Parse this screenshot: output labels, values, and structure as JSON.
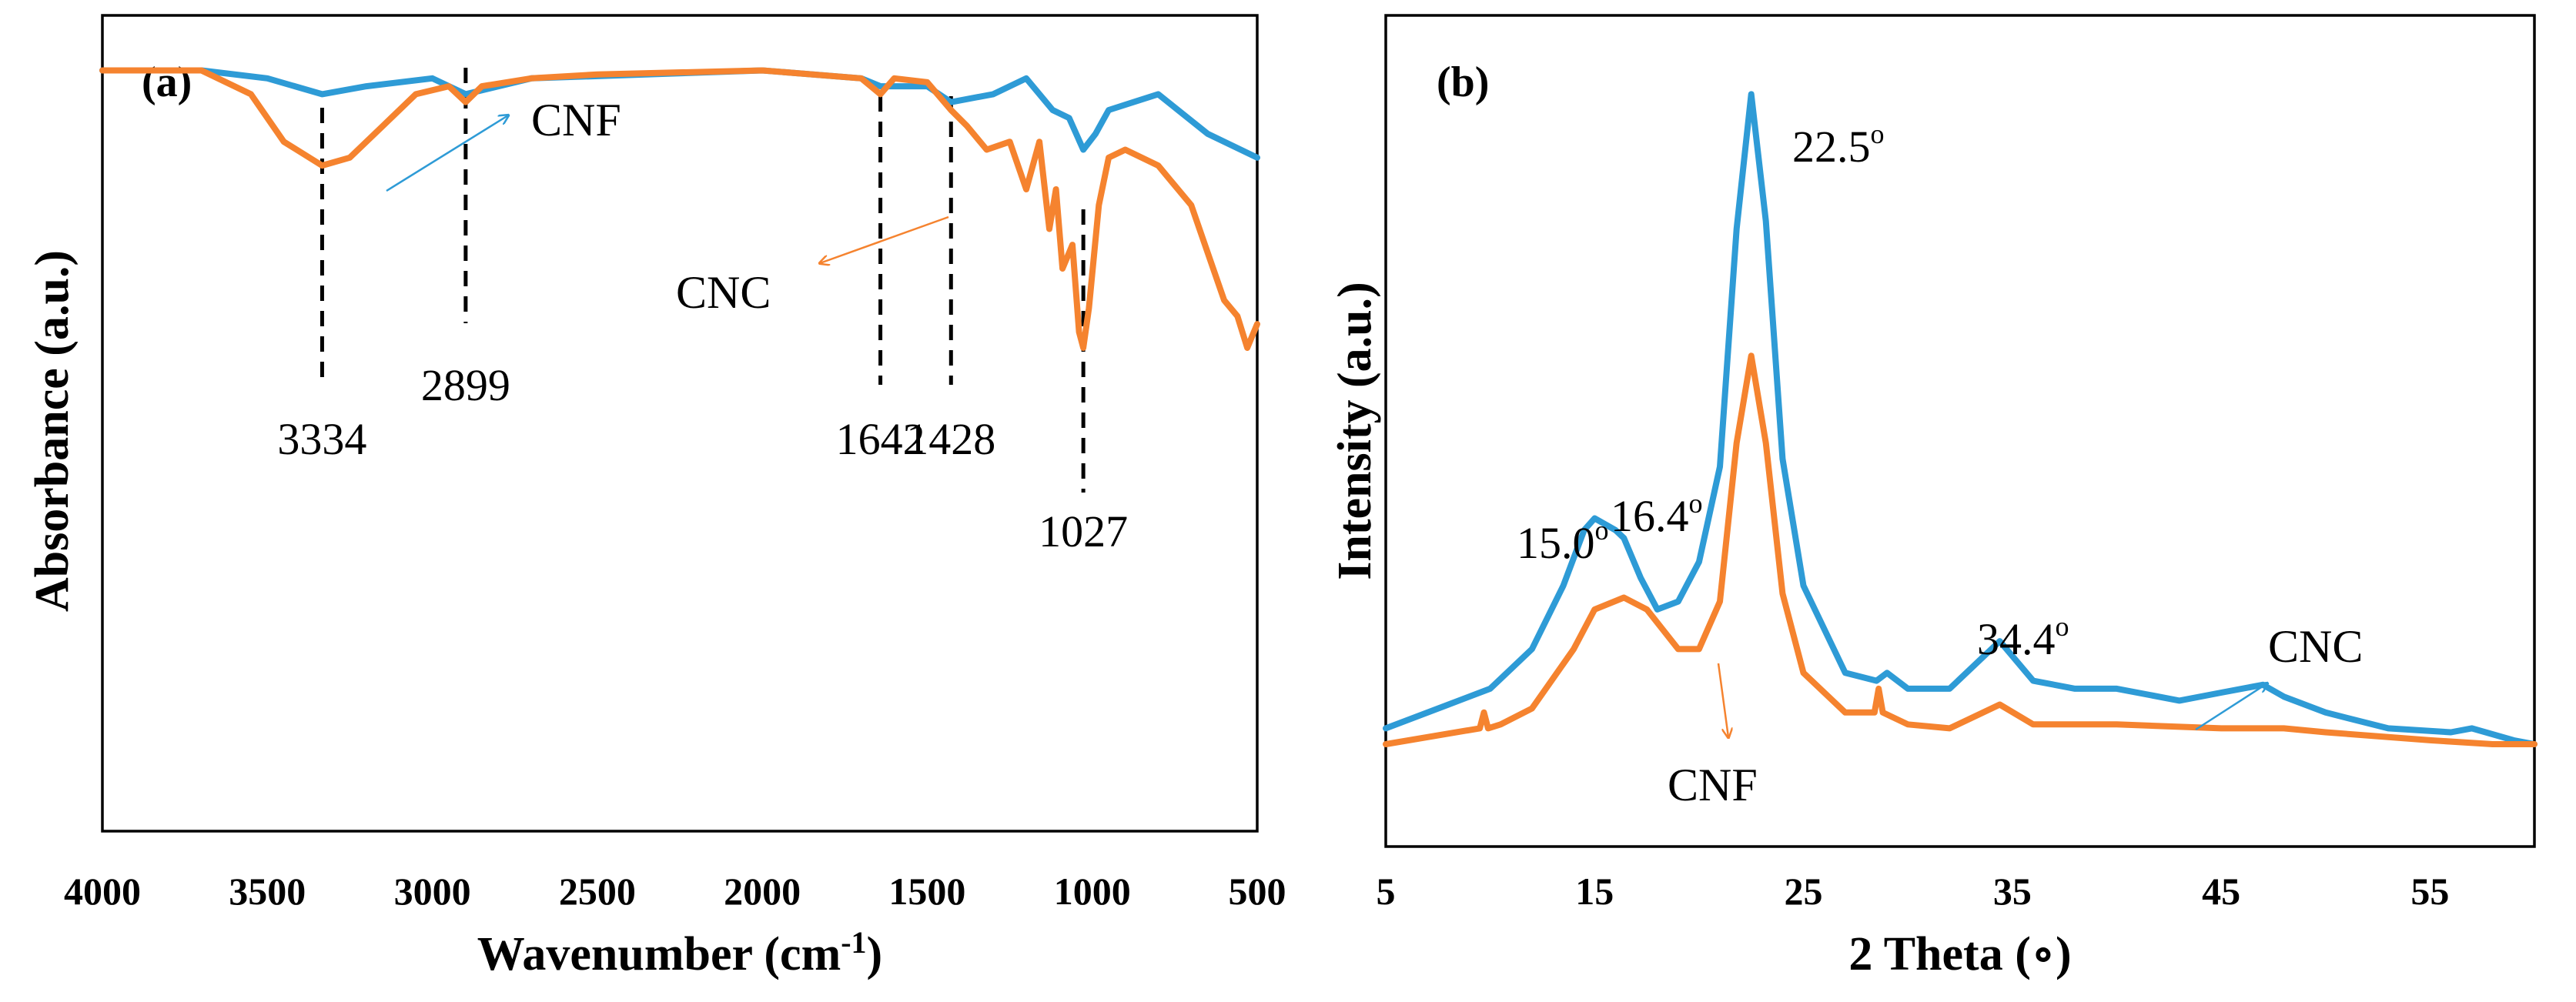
{
  "colors": {
    "blue": "#2e9bd6",
    "orange": "#f5832f",
    "axis": "#000000"
  },
  "chart_data": [
    {
      "panel_label": "(a)",
      "type": "line",
      "xlabel": "Wavenumber (cm",
      "xlabel_sup": "-1",
      "xlabel_end": ")",
      "ylabel": "Absorbance (a.u.)",
      "xlim": [
        4000,
        500
      ],
      "ylim": [
        0,
        1
      ],
      "xticks": [
        "4000",
        "3500",
        "3000",
        "2500",
        "2000",
        "1500",
        "1000",
        "500"
      ],
      "grid": false,
      "series": [
        {
          "name": "CNF",
          "color": "#2e9bd6",
          "x": [
            4000,
            3700,
            3500,
            3334,
            3200,
            3000,
            2899,
            2700,
            2000,
            1700,
            1642,
            1500,
            1428,
            1300,
            1200,
            1120,
            1070,
            1027,
            990,
            950,
            800,
            650,
            500
          ],
          "y": [
            0.95,
            0.95,
            0.94,
            0.92,
            0.93,
            0.94,
            0.92,
            0.94,
            0.95,
            0.94,
            0.93,
            0.93,
            0.91,
            0.92,
            0.94,
            0.9,
            0.89,
            0.85,
            0.87,
            0.9,
            0.92,
            0.87,
            0.84
          ]
        },
        {
          "name": "CNC",
          "color": "#f5832f",
          "x": [
            4000,
            3700,
            3550,
            3450,
            3334,
            3250,
            3150,
            3050,
            2950,
            2899,
            2850,
            2700,
            2500,
            2000,
            1700,
            1642,
            1600,
            1500,
            1428,
            1380,
            1320,
            1250,
            1200,
            1160,
            1130,
            1110,
            1090,
            1060,
            1040,
            1027,
            1010,
            980,
            950,
            900,
            800,
            700,
            650,
            600,
            560,
            530,
            500
          ],
          "y": [
            0.95,
            0.95,
            0.92,
            0.86,
            0.83,
            0.84,
            0.88,
            0.92,
            0.93,
            0.91,
            0.93,
            0.94,
            0.945,
            0.95,
            0.94,
            0.92,
            0.94,
            0.935,
            0.9,
            0.88,
            0.85,
            0.86,
            0.8,
            0.86,
            0.75,
            0.8,
            0.7,
            0.73,
            0.62,
            0.6,
            0.65,
            0.78,
            0.84,
            0.85,
            0.83,
            0.78,
            0.72,
            0.66,
            0.64,
            0.6,
            0.63
          ]
        }
      ],
      "peak_lines": [
        {
          "x": 3334,
          "label": "3334"
        },
        {
          "x": 2899,
          "label": "2899"
        },
        {
          "x": 1642,
          "label": "1642"
        },
        {
          "x": 1428,
          "label": "1428"
        },
        {
          "x": 1027,
          "label": "1027"
        }
      ],
      "annotations": [
        "CNF",
        "CNC"
      ]
    },
    {
      "panel_label": "(b)",
      "type": "line",
      "xlabel": "2 Theta (∘)",
      "ylabel": "Intensity (a.u.)",
      "xlim": [
        5,
        60
      ],
      "ylim": [
        0,
        1
      ],
      "xticks": [
        "5",
        "15",
        "25",
        "35",
        "45",
        "55"
      ],
      "grid": false,
      "series": [
        {
          "name": "CNC",
          "color": "#2e9bd6",
          "x": [
            5,
            8,
            10,
            12,
            13.5,
            14.5,
            15,
            16,
            16.4,
            17.2,
            18,
            19,
            20,
            21,
            21.8,
            22.5,
            23.2,
            24,
            25,
            27,
            28.5,
            29,
            30,
            32,
            34.4,
            36,
            38,
            40,
            43,
            45,
            47,
            48,
            50,
            53,
            56,
            57,
            59,
            60
          ],
          "y": [
            0.12,
            0.15,
            0.17,
            0.22,
            0.3,
            0.37,
            0.385,
            0.37,
            0.36,
            0.31,
            0.27,
            0.28,
            0.33,
            0.45,
            0.75,
            0.92,
            0.76,
            0.46,
            0.3,
            0.19,
            0.18,
            0.19,
            0.17,
            0.17,
            0.23,
            0.18,
            0.17,
            0.17,
            0.155,
            0.165,
            0.175,
            0.16,
            0.14,
            0.12,
            0.115,
            0.12,
            0.105,
            0.1
          ]
        },
        {
          "name": "CNF",
          "color": "#f5832f",
          "x": [
            5,
            9.5,
            9.7,
            9.9,
            10.5,
            12,
            14,
            15,
            16.4,
            17.5,
            19,
            20,
            21,
            21.8,
            22.5,
            23.2,
            24,
            25,
            27,
            28.4,
            28.6,
            28.8,
            30,
            32,
            34.4,
            36,
            40,
            45,
            48,
            50,
            55,
            58,
            60
          ],
          "y": [
            0.1,
            0.12,
            0.14,
            0.12,
            0.125,
            0.145,
            0.22,
            0.27,
            0.285,
            0.27,
            0.22,
            0.22,
            0.28,
            0.48,
            0.59,
            0.48,
            0.29,
            0.19,
            0.14,
            0.14,
            0.17,
            0.14,
            0.125,
            0.12,
            0.15,
            0.125,
            0.125,
            0.12,
            0.12,
            0.115,
            0.105,
            0.1,
            0.1
          ]
        }
      ],
      "peak_labels": [
        {
          "text": "15.0",
          "sup": "o"
        },
        {
          "text": "16.4",
          "sup": "o"
        },
        {
          "text": "22.5",
          "sup": "o"
        },
        {
          "text": "34.4",
          "sup": "o"
        }
      ],
      "annotations": [
        "CNC",
        "CNF"
      ]
    }
  ]
}
